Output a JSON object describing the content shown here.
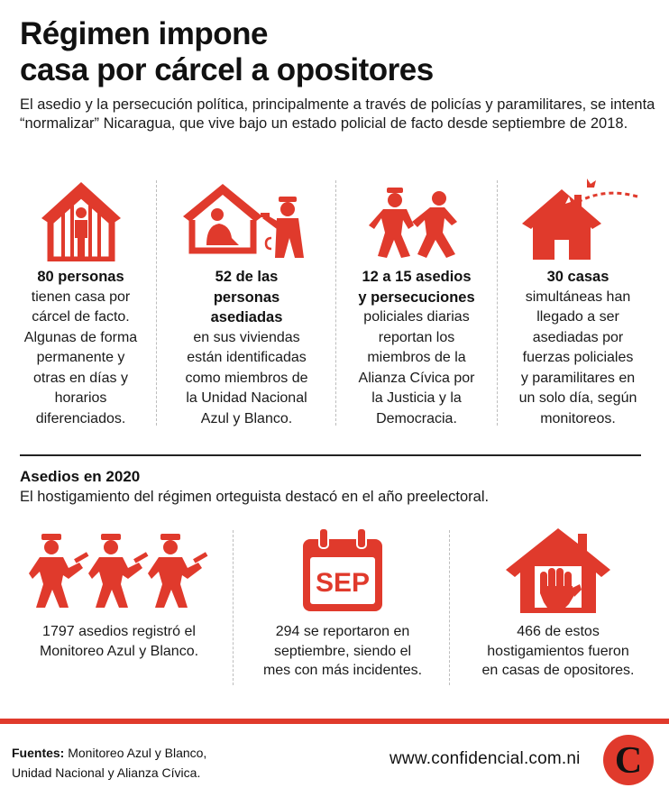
{
  "title_line1": "Régimen impone",
  "title_line2": "casa por cárcel a opositores",
  "intro": "El asedio y la persecución política, principalmente a través de policías y paramilitares, se intenta “normalizar” Nicaragua, que vive bajo un estado policial de facto desde septiembre de 2018.",
  "colors": {
    "accent": "#e03a2c",
    "text": "#1a1a1a"
  },
  "stats": [
    {
      "icon": "house-jail-icon",
      "bold": "80 personas",
      "lines": [
        "tienen casa por",
        "cárcel de facto.",
        "Algunas de forma",
        "permanente y",
        "otras en días y",
        "horarios",
        "diferenciados."
      ]
    },
    {
      "icon": "house-police-icon",
      "bold_lines": [
        "52 de las",
        "personas",
        "asediadas"
      ],
      "lines": [
        "en sus viviendas",
        "están identificadas",
        "como miembros de",
        "la Unidad Nacional",
        "Azul y Blanco."
      ]
    },
    {
      "icon": "police-chase-icon",
      "bold_lines": [
        "12 a 15 asedios",
        "y persecuciones"
      ],
      "lines": [
        "policiales diarias",
        "reportan los",
        "miembros de la",
        "Alianza Cívica por",
        "la Justicia y la",
        "Democracia."
      ]
    },
    {
      "icon": "house-shot-icon",
      "bold": "30 casas",
      "lines": [
        "simultáneas han",
        "llegado a ser",
        "asediadas por",
        "fuerzas policiales",
        "y paramilitares en",
        "un solo día, según",
        "monitoreos."
      ]
    }
  ],
  "section": {
    "title": "Asedios en 2020",
    "subtitle": "El hostigamiento del régimen orteguista destacó en el año preelectoral."
  },
  "bottom": [
    {
      "icon": "armed-officers-icon",
      "lines": [
        "1797 asedios registró el",
        "Monitoreo Azul y Blanco."
      ]
    },
    {
      "icon": "calendar-sep-icon",
      "calendar_label": "SEP",
      "lines": [
        "294 se reportaron en",
        "septiembre, siendo el",
        "mes con más incidentes."
      ]
    },
    {
      "icon": "house-fist-icon",
      "lines": [
        "466 de estos",
        "hostigamientos fueron",
        "en casas de opositores."
      ]
    }
  ],
  "footer": {
    "sources_label": "Fuentes:",
    "sources_text1": " Monitoreo Azul y Blanco,",
    "sources_text2": "Unidad Nacional y Alianza Cívica.",
    "url": "www.confidencial.com.ni",
    "logo_letter": "C"
  }
}
